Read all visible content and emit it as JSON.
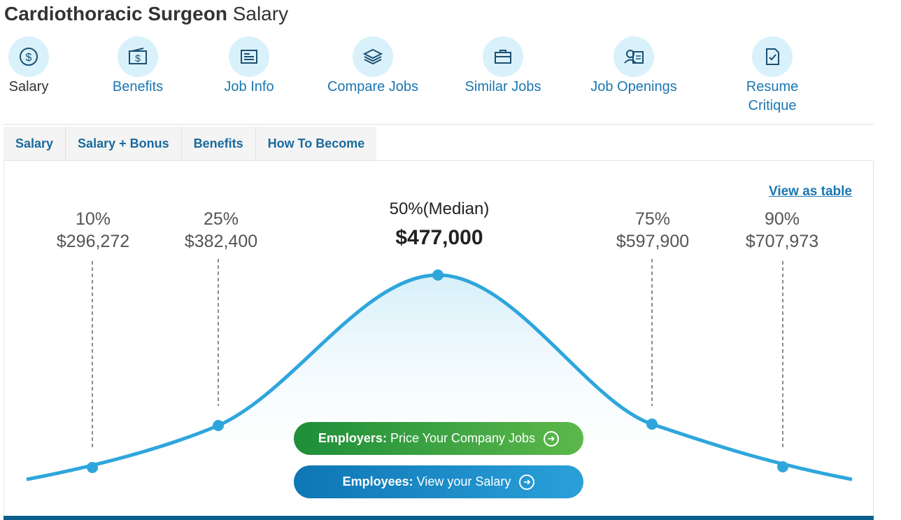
{
  "header": {
    "title_strong": "Cardiothoracic Surgeon",
    "title_rest": " Salary"
  },
  "nav": [
    {
      "label": "Salary",
      "icon": "dollar-coin-icon"
    },
    {
      "label": "Benefits",
      "icon": "dollar-bill-icon"
    },
    {
      "label": "Job Info",
      "icon": "document-lines-icon"
    },
    {
      "label": "Compare Jobs",
      "icon": "layers-icon"
    },
    {
      "label": "Similar Jobs",
      "icon": "briefcase-icon"
    },
    {
      "label": "Job Openings",
      "icon": "person-card-icon"
    },
    {
      "label": "Resume Critique",
      "icon": "document-check-icon"
    }
  ],
  "tabs": [
    "Salary",
    "Salary + Bonus",
    "Benefits",
    "How To Become"
  ],
  "view_as_table": "View as table",
  "distribution": {
    "p10": {
      "pct": "10%",
      "value": "$296,272"
    },
    "p25": {
      "pct": "25%",
      "value": "$382,400"
    },
    "p50": {
      "pct": "50%(Median)",
      "value": "$477,000"
    },
    "p75": {
      "pct": "75%",
      "value": "$597,900"
    },
    "p90": {
      "pct": "90%",
      "value": "$707,973"
    }
  },
  "cta": {
    "employers_bold": "Employers:",
    "employers_text": "Price Your Company Jobs",
    "employees_bold": "Employees:",
    "employees_text": "View your Salary"
  },
  "colors": {
    "accent": "#1b77b1",
    "curve": "#2ea6dc",
    "icon_bg": "#d9f1fa",
    "employers_green": "#1e8e3a",
    "employees_blue": "#0e76b4"
  }
}
